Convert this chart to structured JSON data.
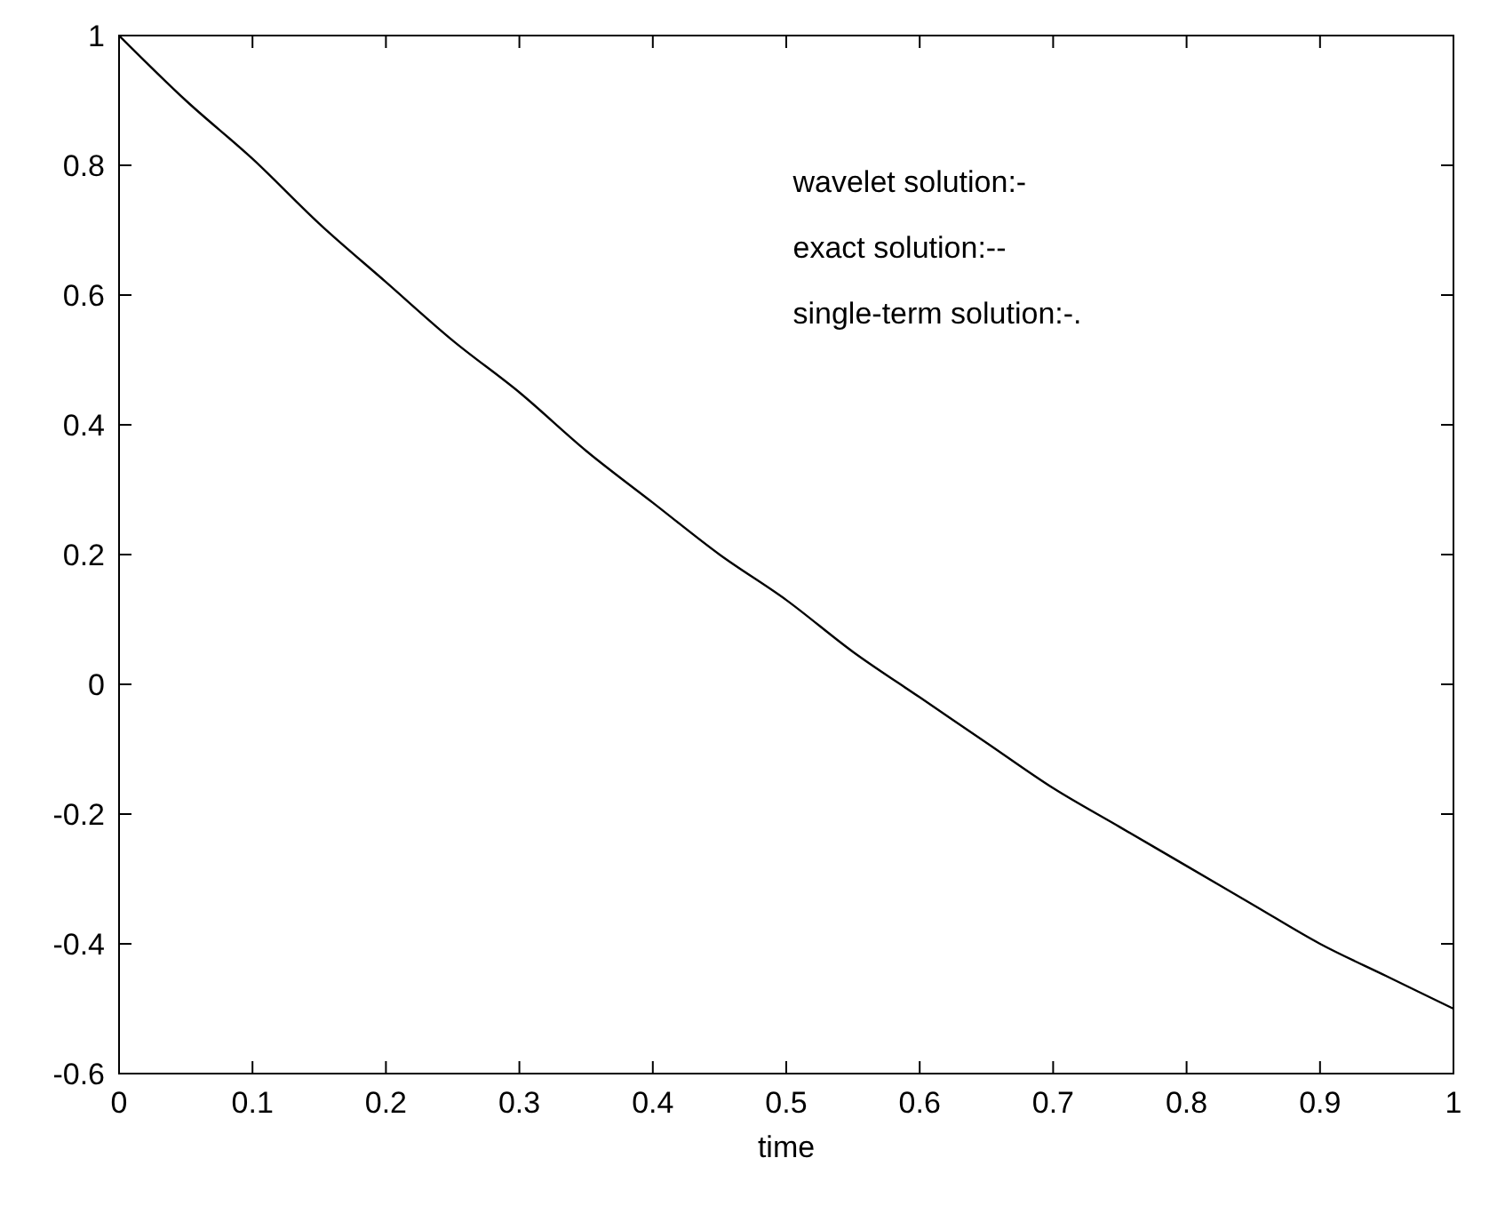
{
  "chart_data": {
    "type": "line",
    "xlabel": "time",
    "x": [
      0,
      0.05,
      0.1,
      0.15,
      0.2,
      0.25,
      0.3,
      0.35,
      0.4,
      0.45,
      0.5,
      0.55,
      0.6,
      0.65,
      0.7,
      0.75,
      0.8,
      0.85,
      0.9,
      0.95,
      1
    ],
    "series": [
      {
        "color": "#000000",
        "values": [
          1,
          0.9,
          0.81,
          0.71,
          0.62,
          0.53,
          0.45,
          0.36,
          0.28,
          0.2,
          0.13,
          0.05,
          -0.02,
          -0.09,
          -0.16,
          -0.22,
          -0.28,
          -0.34,
          -0.4,
          -0.45,
          -0.5
        ]
      }
    ],
    "xlim": [
      0,
      1
    ],
    "xticks": [
      0,
      0.1,
      0.2,
      0.3,
      0.4,
      0.5,
      0.6,
      0.7,
      0.8,
      0.9,
      1
    ],
    "ylim": [
      -0.6,
      1
    ],
    "yticks": [
      -0.6,
      -0.4,
      -0.2,
      0,
      0.2,
      0.4,
      0.6,
      0.8,
      1
    ],
    "grid": false,
    "marker": "none",
    "line_style": "solid",
    "annotations": [
      "wavelet solution:-",
      "exact solution:--",
      "single-term solution:-."
    ]
  }
}
